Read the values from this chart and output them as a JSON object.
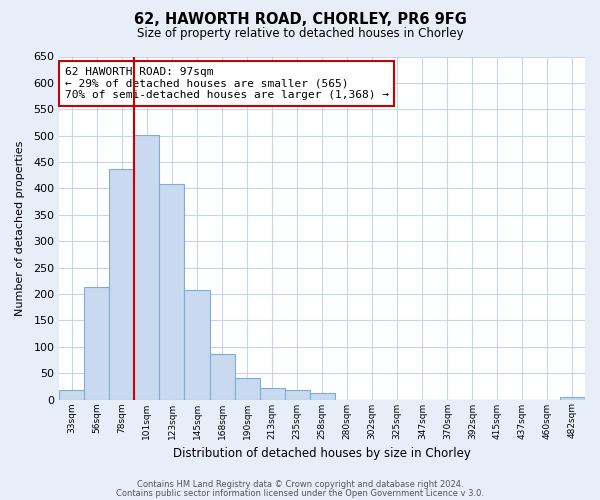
{
  "title": "62, HAWORTH ROAD, CHORLEY, PR6 9FG",
  "subtitle": "Size of property relative to detached houses in Chorley",
  "xlabel": "Distribution of detached houses by size in Chorley",
  "ylabel": "Number of detached properties",
  "bar_labels": [
    "33sqm",
    "56sqm",
    "78sqm",
    "101sqm",
    "123sqm",
    "145sqm",
    "168sqm",
    "190sqm",
    "213sqm",
    "235sqm",
    "258sqm",
    "280sqm",
    "302sqm",
    "325sqm",
    "347sqm",
    "370sqm",
    "392sqm",
    "415sqm",
    "437sqm",
    "460sqm",
    "482sqm"
  ],
  "bar_values": [
    18,
    213,
    437,
    502,
    408,
    207,
    87,
    40,
    22,
    18,
    12,
    0,
    0,
    0,
    0,
    0,
    0,
    0,
    0,
    0,
    4
  ],
  "bar_color": "#c9d9ef",
  "bar_edge_color": "#7bafd4",
  "vline_color": "#cc0000",
  "annotation_text": "62 HAWORTH ROAD: 97sqm\n← 29% of detached houses are smaller (565)\n70% of semi-detached houses are larger (1,368) →",
  "annotation_box_color": "white",
  "annotation_box_edge": "#cc0000",
  "ylim": [
    0,
    650
  ],
  "yticks": [
    0,
    50,
    100,
    150,
    200,
    250,
    300,
    350,
    400,
    450,
    500,
    550,
    600,
    650
  ],
  "footer1": "Contains HM Land Registry data © Crown copyright and database right 2024.",
  "footer2": "Contains public sector information licensed under the Open Government Licence v 3.0.",
  "plot_bg_color": "#ffffff",
  "fig_bg_color": "#e8eef8",
  "grid_color": "#c8d4e8",
  "vline_bar_index": 3
}
